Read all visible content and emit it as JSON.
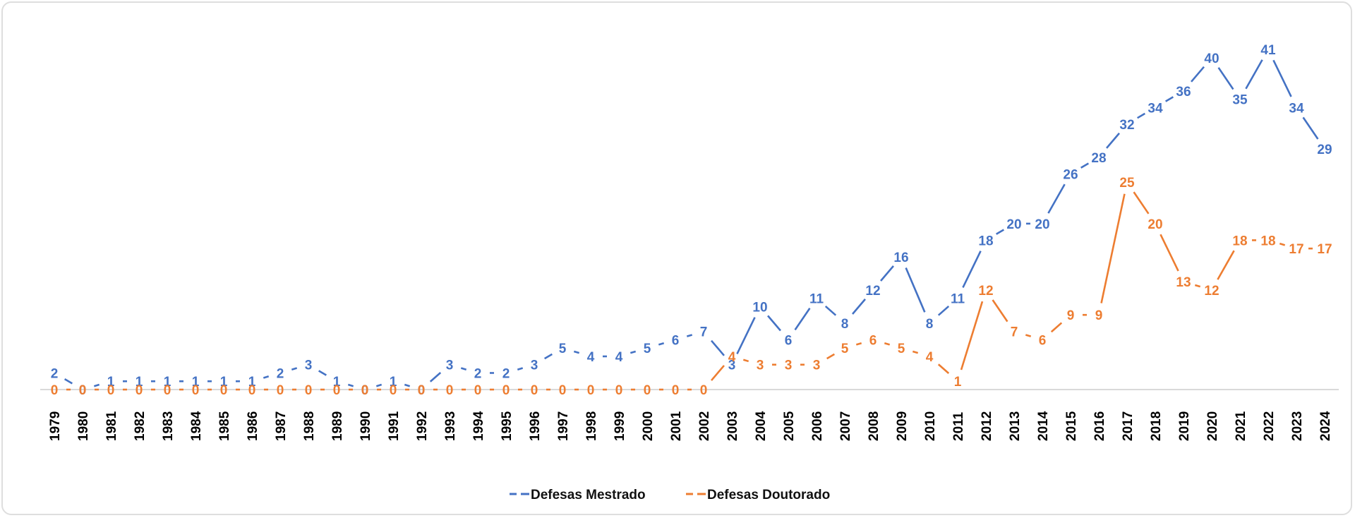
{
  "chart_data": {
    "type": "line",
    "title": "",
    "xlabel": "",
    "ylabel": "",
    "grid": false,
    "legend_position": "bottom",
    "ylim": [
      0,
      41
    ],
    "x": [
      "1979",
      "1980",
      "1981",
      "1982",
      "1983",
      "1984",
      "1985",
      "1986",
      "1987",
      "1988",
      "1989",
      "1990",
      "1991",
      "1992",
      "1993",
      "1994",
      "1995",
      "1996",
      "1997",
      "1998",
      "1999",
      "2000",
      "2001",
      "2002",
      "2003",
      "2004",
      "2005",
      "2006",
      "2007",
      "2008",
      "2009",
      "2010",
      "2011",
      "2012",
      "2013",
      "2014",
      "2015",
      "2016",
      "2017",
      "2018",
      "2019",
      "2020",
      "2021",
      "2022",
      "2023",
      "2024"
    ],
    "series": [
      {
        "name": "Defesas Mestrado",
        "color": "#4472C4",
        "values": [
          2,
          0,
          1,
          1,
          1,
          1,
          1,
          1,
          2,
          3,
          1,
          0,
          1,
          0,
          3,
          2,
          2,
          3,
          5,
          4,
          4,
          5,
          6,
          7,
          3,
          10,
          6,
          11,
          8,
          12,
          16,
          8,
          11,
          18,
          20,
          20,
          26,
          28,
          32,
          34,
          36,
          40,
          35,
          41,
          34,
          29
        ]
      },
      {
        "name": "Defesas Doutorado",
        "color": "#ED7D31",
        "values": [
          0,
          0,
          0,
          0,
          0,
          0,
          0,
          0,
          0,
          0,
          0,
          0,
          0,
          0,
          0,
          0,
          0,
          0,
          0,
          0,
          0,
          0,
          0,
          0,
          4,
          3,
          3,
          3,
          5,
          6,
          5,
          4,
          1,
          12,
          7,
          6,
          9,
          9,
          25,
          20,
          13,
          12,
          18,
          18,
          17,
          17
        ]
      }
    ]
  }
}
